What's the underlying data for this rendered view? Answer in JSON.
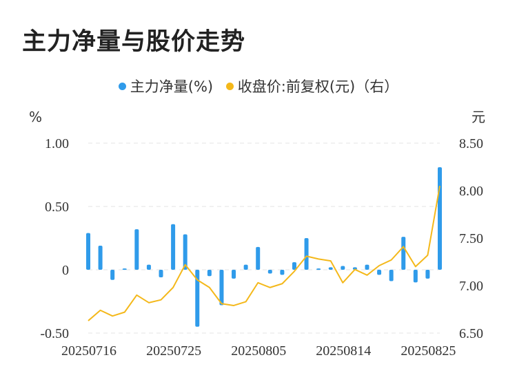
{
  "title": "主力净量与股价走势",
  "colors": {
    "bar": "#2f9bea",
    "line": "#f4b81a",
    "grid": "#e3e3e3"
  },
  "chart_data": {
    "type": "bar+line",
    "left_unit": "%",
    "right_unit": "元",
    "left_ticks": [
      "1.00",
      "0.50",
      "0",
      "-0.50"
    ],
    "right_ticks": [
      "8.50",
      "8.00",
      "7.50",
      "7.00",
      "6.50"
    ],
    "ylim_left": [
      -0.5,
      1.0
    ],
    "ylim_right": [
      6.5,
      8.5
    ],
    "x_tick_labels": [
      "20250716",
      "20250725",
      "20250805",
      "20250814",
      "20250825"
    ],
    "x_tick_indices": [
      0,
      7,
      14,
      21,
      28
    ],
    "series": [
      {
        "name": "主力净量(%)",
        "type": "bar",
        "axis": "left",
        "values": [
          0.29,
          0.19,
          -0.08,
          0.01,
          0.32,
          0.04,
          -0.06,
          0.36,
          0.28,
          -0.45,
          -0.05,
          -0.28,
          -0.07,
          0.04,
          0.18,
          -0.03,
          -0.04,
          0.06,
          0.25,
          0.01,
          0.02,
          0.03,
          0.02,
          0.04,
          -0.04,
          -0.09,
          0.26,
          -0.1,
          -0.07,
          0.81
        ]
      },
      {
        "name": "收盘价:前复权(元)（右）",
        "type": "line",
        "axis": "right",
        "values": [
          6.63,
          6.74,
          6.68,
          6.72,
          6.9,
          6.82,
          6.85,
          6.98,
          7.22,
          7.06,
          6.98,
          6.81,
          6.79,
          6.83,
          7.03,
          6.98,
          7.02,
          7.15,
          7.31,
          7.28,
          7.26,
          7.03,
          7.17,
          7.11,
          7.21,
          7.27,
          7.41,
          7.2,
          7.32,
          8.05
        ]
      }
    ],
    "grid": true,
    "legend_position": "top-center"
  }
}
